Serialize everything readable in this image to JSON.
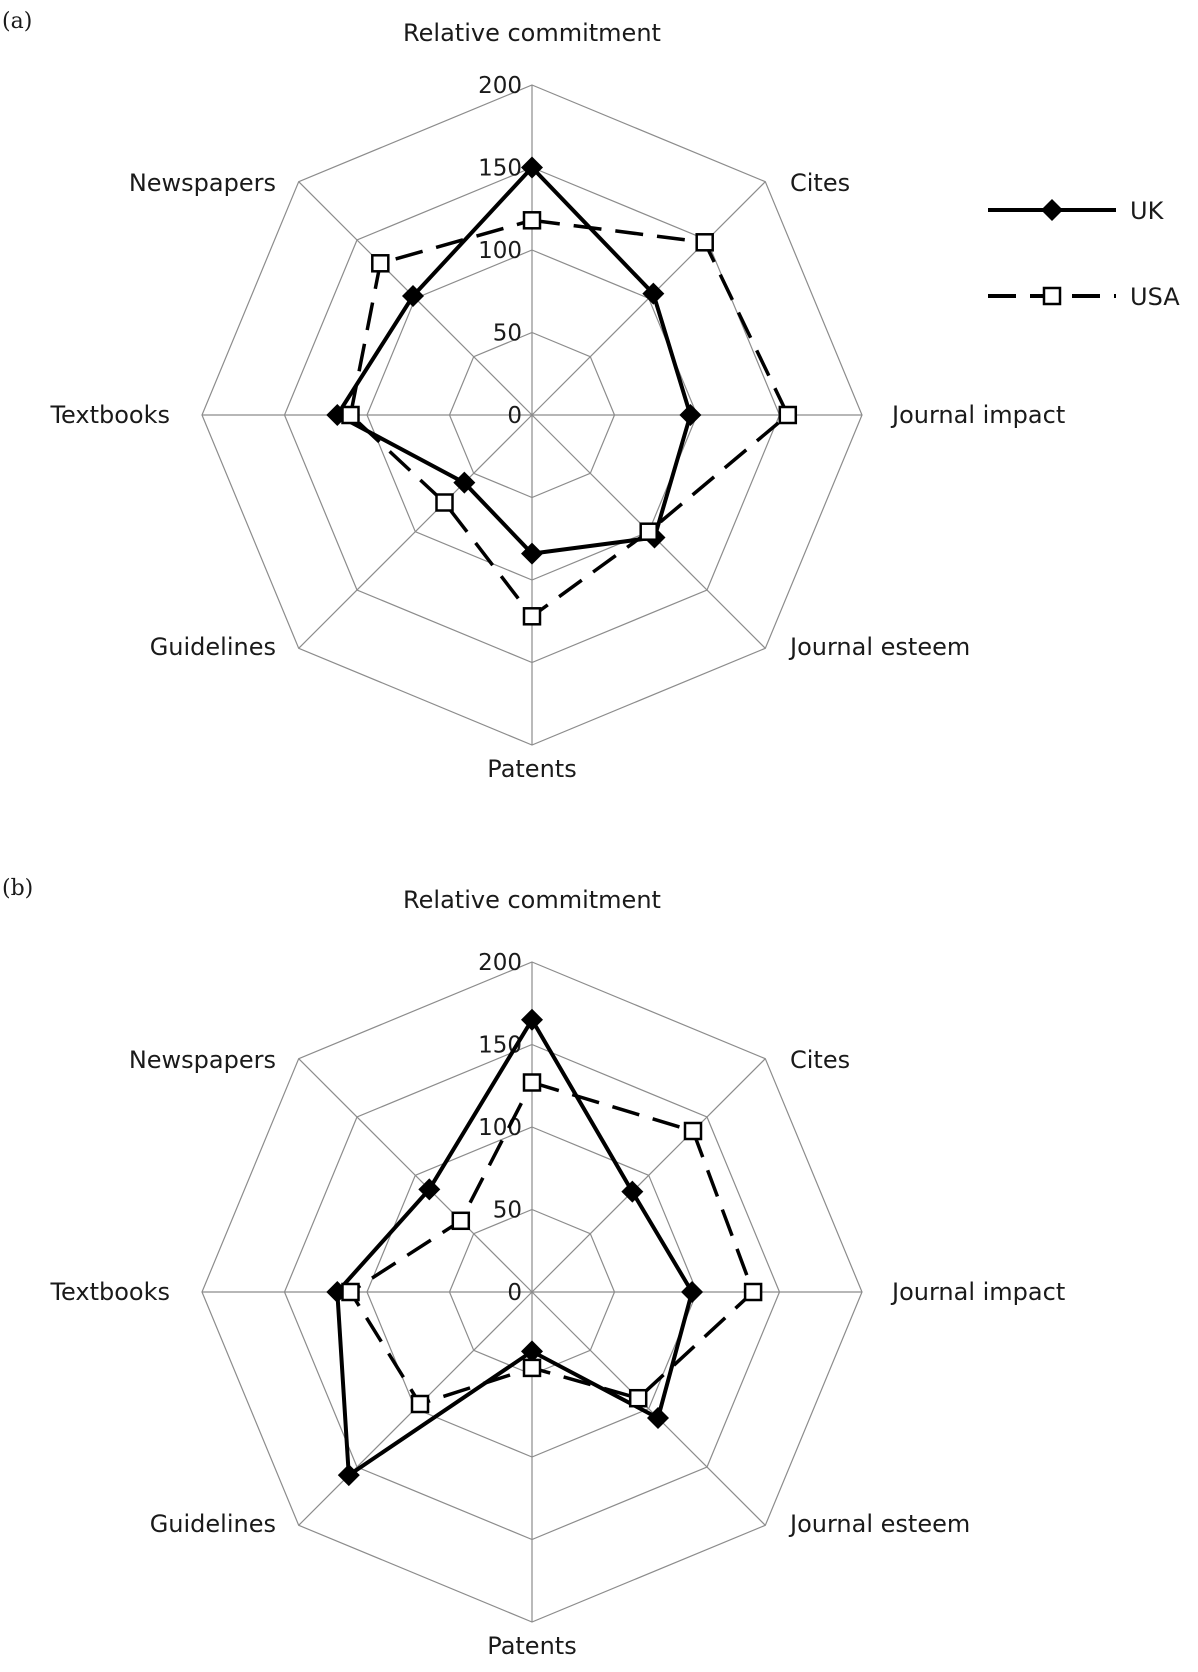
{
  "chart_data": [
    {
      "type": "radar",
      "panel_label": "(a)",
      "axes": [
        "Relative commitment",
        "Cites",
        "Journal impact",
        "Journal esteem",
        "Patents",
        "Guidelines",
        "Textbooks",
        "Newspapers"
      ],
      "rlim": [
        0,
        200
      ],
      "rticks": [
        0,
        50,
        100,
        150,
        200
      ],
      "grid": true,
      "series": [
        {
          "name": "UK",
          "values": [
            150,
            104,
            96,
            105,
            84,
            58,
            118,
            102
          ]
        },
        {
          "name": "USA",
          "values": [
            118,
            148,
            155,
            100,
            122,
            75,
            110,
            130
          ]
        }
      ]
    },
    {
      "type": "radar",
      "panel_label": "(b)",
      "axes": [
        "Relative commitment",
        "Cites",
        "Journal impact",
        "Journal esteem",
        "Patents",
        "Guidelines",
        "Textbooks",
        "Newspapers"
      ],
      "rlim": [
        0,
        200
      ],
      "rticks": [
        0,
        50,
        100,
        150,
        200
      ],
      "grid": true,
      "series": [
        {
          "name": "UK",
          "values": [
            165,
            86,
            97,
            108,
            36,
            157,
            118,
            88
          ]
        },
        {
          "name": "USA",
          "values": [
            127,
            138,
            134,
            91,
            46,
            96,
            110,
            61
          ]
        }
      ]
    }
  ],
  "legend": {
    "placement": "right of panel (a)",
    "entries": [
      {
        "label": "UK",
        "line": "solid",
        "marker": "filled-diamond"
      },
      {
        "label": "USA",
        "line": "dashed",
        "marker": "open-square"
      }
    ]
  },
  "colors": {
    "line": "#000000",
    "grid": "#8c8c8c",
    "text": "#1a1a1a"
  }
}
